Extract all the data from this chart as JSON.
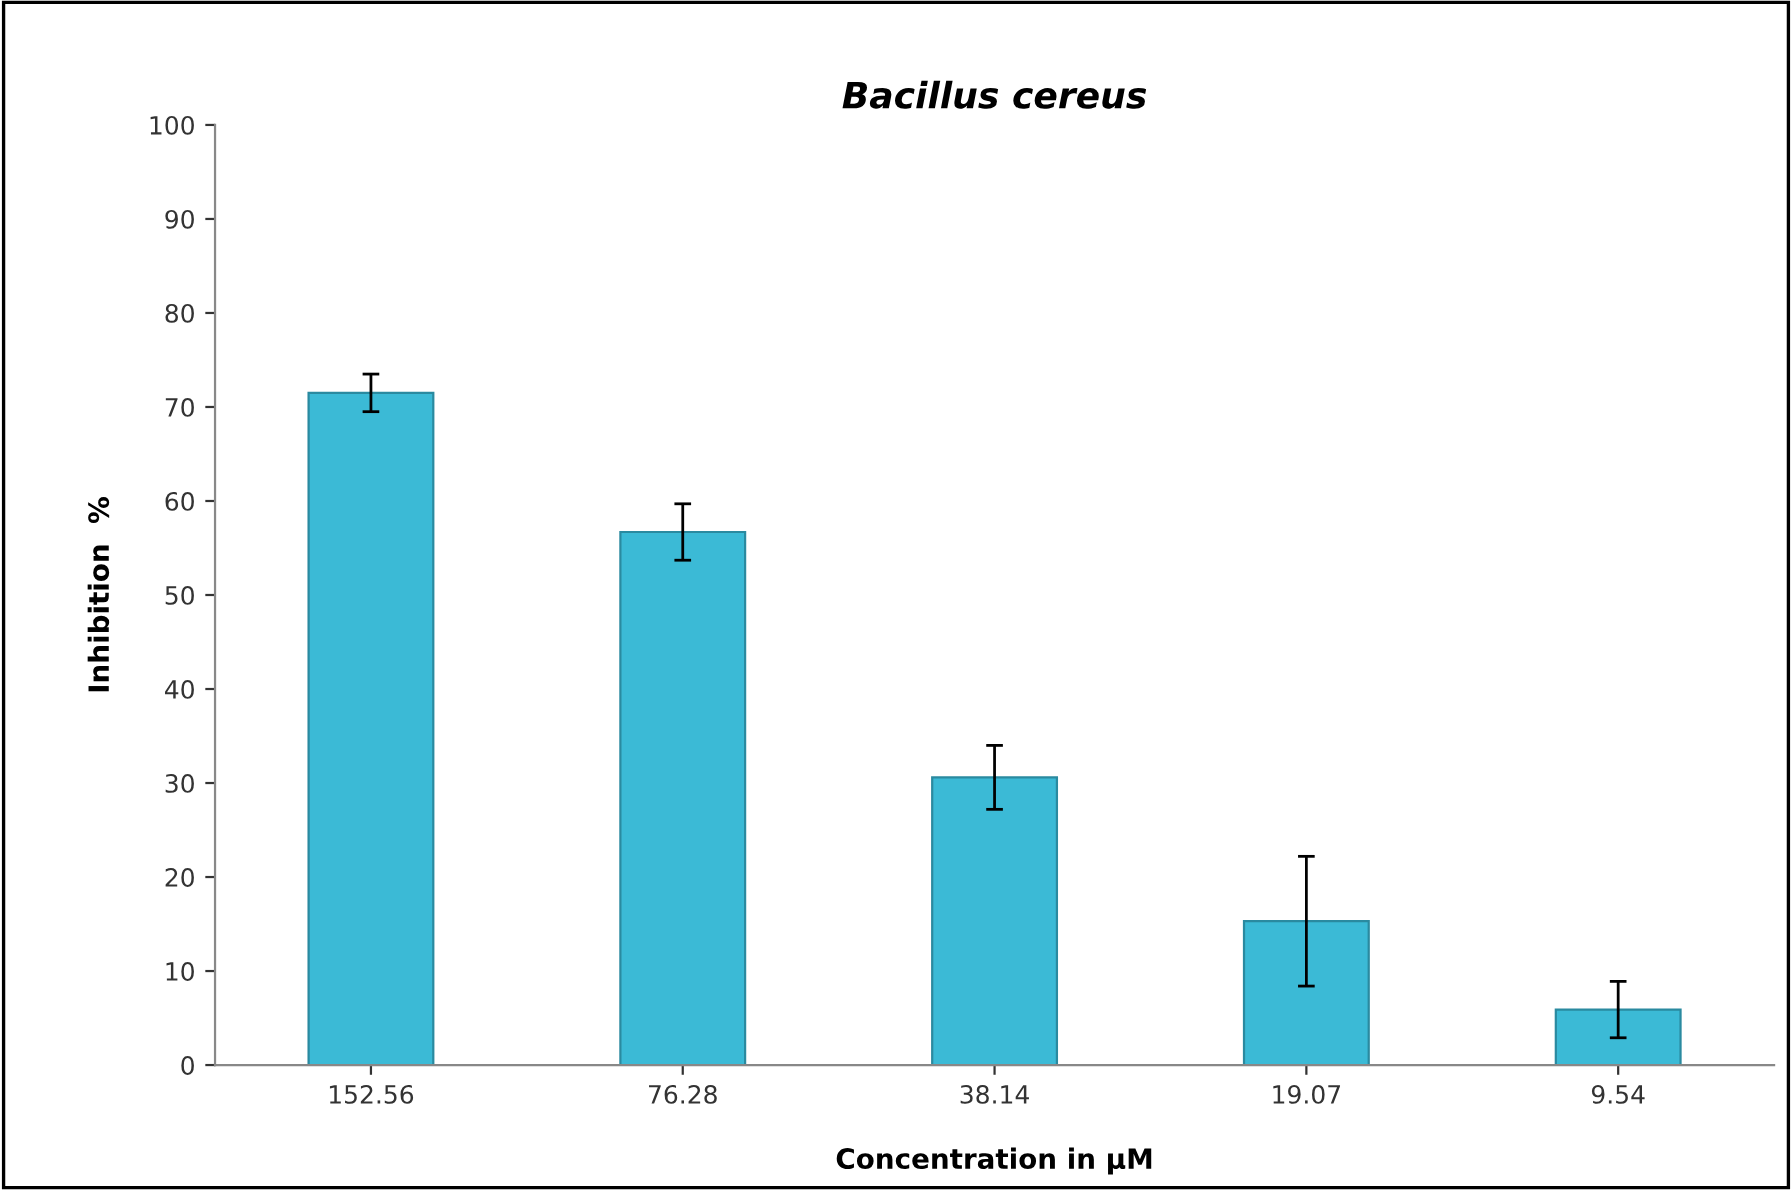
{
  "chart_data": {
    "type": "bar",
    "title": "Bacillus cereus",
    "xlabel": "Concentration in µM",
    "ylabel": "Inhibition  %",
    "categories": [
      "152.56",
      "76.28",
      "38.14",
      "19.07",
      "9.54"
    ],
    "values": [
      71.5,
      56.7,
      30.6,
      15.3,
      5.9
    ],
    "errors": [
      2,
      3,
      3.4,
      6.9,
      3
    ],
    "color": "#3bbad6",
    "ylim": [
      0,
      100
    ],
    "yticks": [
      0,
      10,
      20,
      30,
      40,
      50,
      60,
      70,
      80,
      90,
      100
    ],
    "grid": false
  }
}
